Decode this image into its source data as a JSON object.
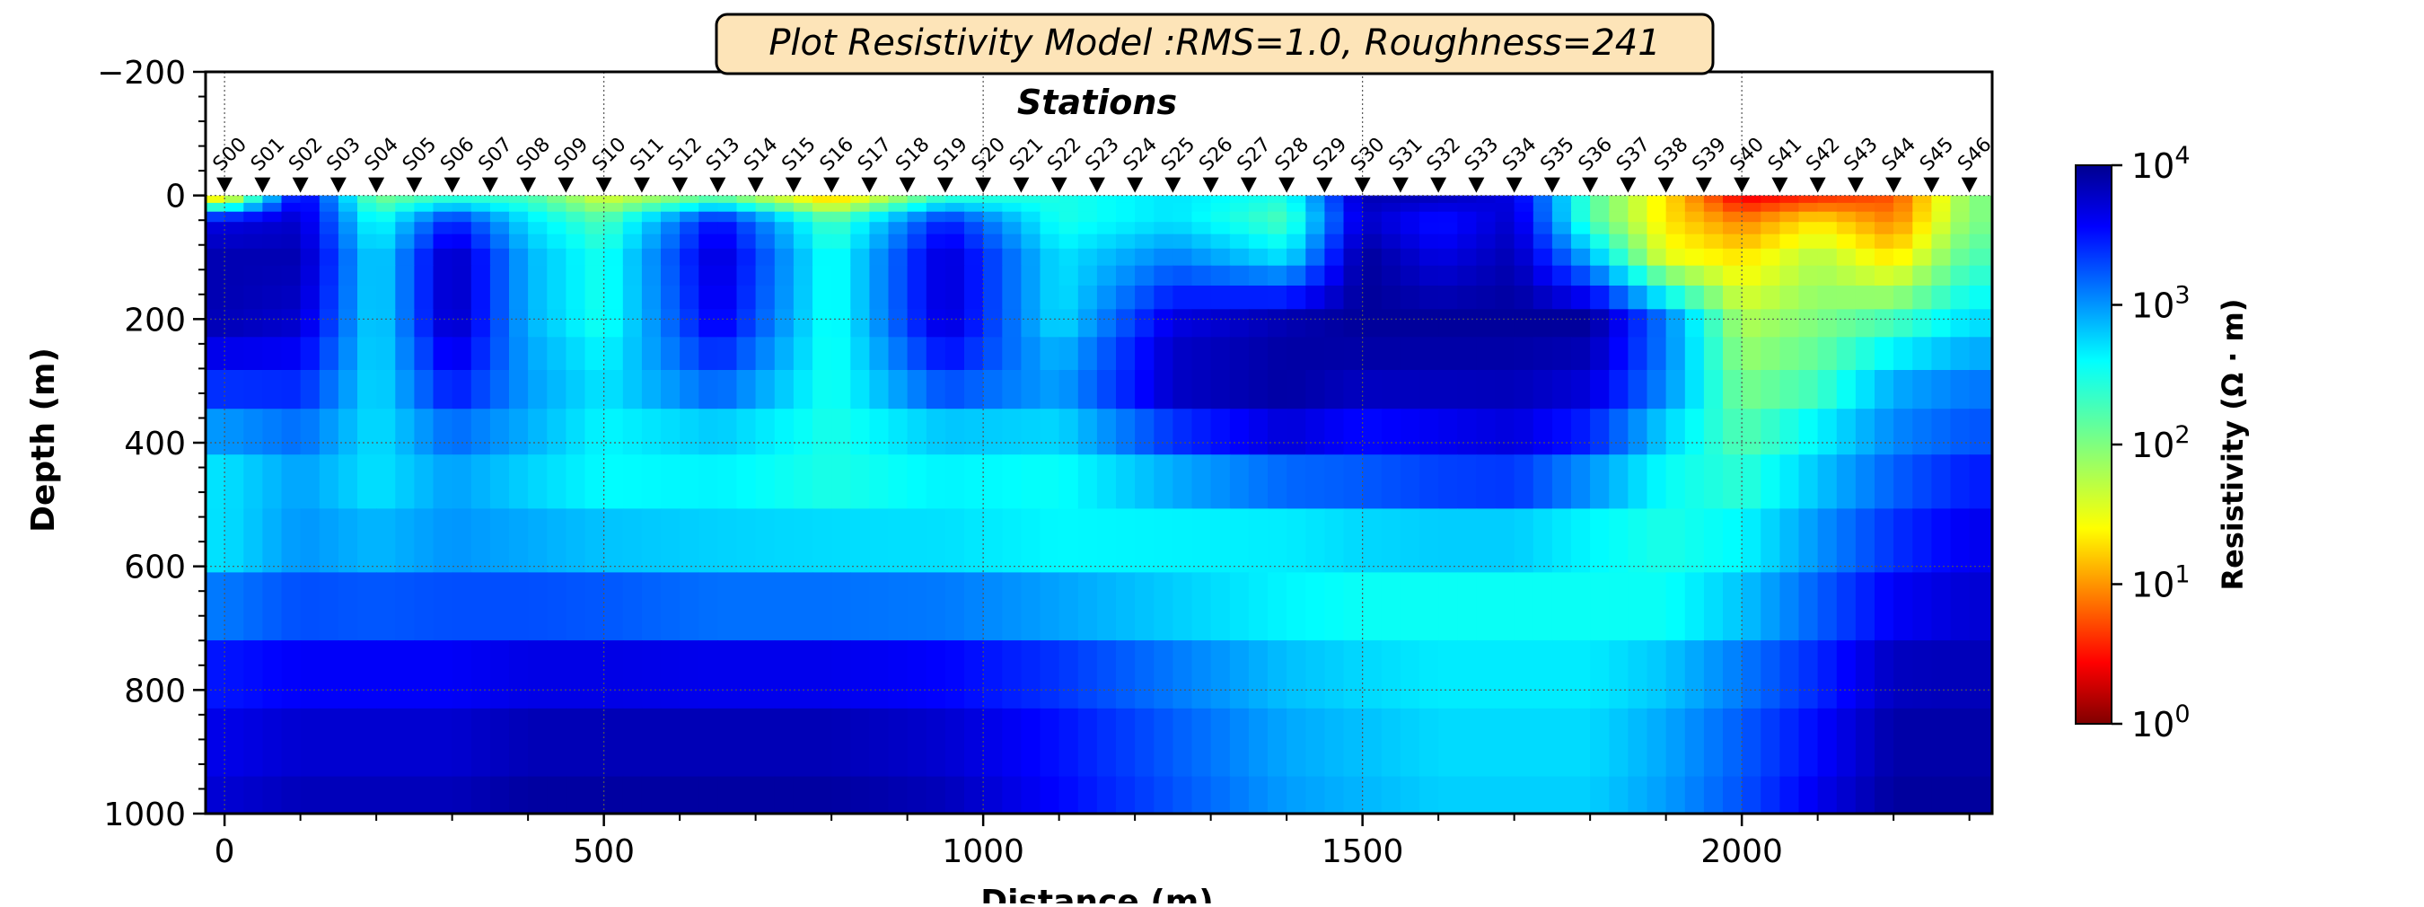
{
  "chart_data": {
    "type": "heatmap",
    "title": "Plot Resistivity Model :RMS=1.0, Roughness=241",
    "subtitle": "Stations",
    "xlabel": "Distance (m)",
    "ylabel": "Depth (m)",
    "xlim": [
      -25,
      2330
    ],
    "ylim": [
      1000,
      -200
    ],
    "x_ticks": [
      "0",
      "500",
      "1000",
      "1500",
      "2000"
    ],
    "x_tick_values": [
      0,
      500,
      1000,
      1500,
      2000
    ],
    "y_ticks": [
      "−200",
      "0",
      "200",
      "400",
      "600",
      "800",
      "1000"
    ],
    "y_tick_values": [
      -200,
      0,
      200,
      400,
      600,
      800,
      1000
    ],
    "grid": true,
    "stations": [
      "S00",
      "S01",
      "S02",
      "S03",
      "S04",
      "S05",
      "S06",
      "S07",
      "S08",
      "S09",
      "S10",
      "S11",
      "S12",
      "S13",
      "S14",
      "S15",
      "S16",
      "S17",
      "S18",
      "S19",
      "S20",
      "S21",
      "S22",
      "S23",
      "S24",
      "S25",
      "S26",
      "S27",
      "S28",
      "S29",
      "S30",
      "S31",
      "S32",
      "S33",
      "S34",
      "S35",
      "S36",
      "S37",
      "S38",
      "S39",
      "S40",
      "S41",
      "S42",
      "S43",
      "S44",
      "S45",
      "S46"
    ],
    "station_spacing_m": 50,
    "colorbar": {
      "label": "Resistivity (Ω · m)",
      "scale": "log",
      "range": [
        1,
        10000
      ],
      "tick_bases": [
        "10",
        "10",
        "10",
        "10",
        "10"
      ],
      "tick_exponents": [
        "0",
        "1",
        "2",
        "3",
        "4"
      ],
      "colormap": "jet_r"
    },
    "model_log10_resistivity": {
      "x_nodes_m": [
        0,
        100,
        200,
        300,
        400,
        500,
        650,
        800,
        950,
        1100,
        1250,
        1400,
        1500,
        1600,
        1700,
        1800,
        1900,
        2000,
        2100,
        2200,
        2300
      ],
      "depth_nodes_m": [
        0,
        40,
        100,
        200,
        300,
        400,
        500,
        600,
        700,
        800,
        1000
      ],
      "values": [
        [
          1.2,
          3.6,
          2.0,
          2.2,
          2.2,
          1.6,
          2.0,
          1.2,
          2.2,
          2.4,
          2.6,
          2.4,
          3.8,
          3.8,
          3.6,
          2.2,
          1.4,
          0.4,
          0.6,
          0.8,
          2.0
        ],
        [
          3.6,
          3.7,
          2.4,
          3.4,
          2.6,
          2.2,
          3.5,
          2.2,
          3.4,
          2.4,
          2.6,
          2.2,
          3.7,
          3.4,
          3.7,
          2.2,
          1.4,
          1.0,
          1.4,
          1.0,
          2.0
        ],
        [
          3.8,
          3.8,
          2.6,
          3.8,
          2.8,
          2.4,
          3.7,
          2.4,
          3.7,
          2.6,
          3.0,
          2.6,
          3.9,
          3.6,
          3.8,
          2.8,
          1.6,
          1.4,
          1.8,
          1.4,
          2.2
        ],
        [
          3.8,
          3.7,
          2.6,
          3.8,
          2.8,
          2.4,
          3.6,
          2.4,
          3.7,
          2.6,
          3.6,
          3.8,
          3.9,
          3.9,
          3.9,
          3.9,
          3.0,
          1.8,
          2.0,
          2.2,
          2.6
        ],
        [
          3.4,
          3.4,
          2.6,
          3.5,
          2.9,
          2.6,
          3.2,
          2.4,
          3.3,
          2.9,
          3.8,
          3.9,
          3.8,
          3.8,
          3.8,
          3.7,
          3.0,
          2.0,
          2.2,
          2.8,
          3.0
        ],
        [
          2.8,
          3.0,
          2.6,
          3.0,
          2.8,
          2.5,
          2.6,
          2.4,
          2.6,
          2.6,
          3.2,
          3.6,
          3.4,
          3.5,
          3.6,
          3.3,
          2.6,
          2.2,
          2.6,
          3.0,
          3.2
        ],
        [
          2.5,
          2.8,
          2.6,
          2.8,
          2.6,
          2.5,
          2.5,
          2.4,
          2.5,
          2.4,
          2.6,
          2.8,
          3.0,
          3.1,
          3.1,
          2.7,
          2.4,
          2.4,
          2.8,
          3.2,
          3.5
        ],
        [
          2.7,
          3.0,
          2.9,
          3.0,
          3.0,
          2.9,
          2.8,
          2.8,
          2.7,
          2.6,
          2.5,
          2.4,
          2.4,
          2.4,
          2.4,
          2.4,
          2.4,
          2.6,
          3.0,
          3.4,
          3.6
        ],
        [
          3.2,
          3.3,
          3.3,
          3.3,
          3.3,
          3.3,
          3.2,
          3.2,
          3.2,
          3.0,
          2.8,
          2.6,
          2.5,
          2.5,
          2.5,
          2.5,
          2.5,
          2.8,
          3.2,
          3.6,
          3.7
        ],
        [
          3.5,
          3.6,
          3.6,
          3.6,
          3.7,
          3.7,
          3.7,
          3.7,
          3.6,
          3.4,
          3.1,
          2.8,
          2.7,
          2.6,
          2.6,
          2.6,
          2.8,
          3.1,
          3.4,
          3.8,
          3.8
        ],
        [
          3.7,
          3.8,
          3.8,
          3.8,
          3.9,
          3.9,
          3.9,
          3.9,
          3.8,
          3.5,
          3.2,
          2.9,
          2.8,
          2.7,
          2.7,
          2.7,
          2.9,
          3.2,
          3.6,
          3.9,
          3.9
        ]
      ]
    }
  }
}
